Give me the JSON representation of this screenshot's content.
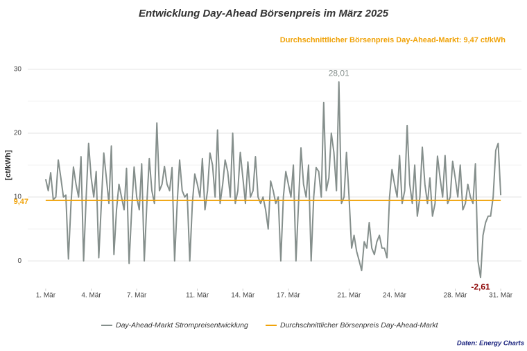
{
  "chart_data": {
    "type": "line",
    "title": "Entwicklung Day-Ahead Börsenpreis im März 2025",
    "subtitle": "Durchschnittlicher Börsenpreis Day-Ahead-Markt: 9,47 ct/kWh",
    "y_label": "[ct/kWh]",
    "source": "Daten: Energy Charts",
    "xlim": [
      0,
      32
    ],
    "ylim": [
      -4,
      34
    ],
    "xticks": [
      {
        "value": 1,
        "label": "1. Mär"
      },
      {
        "value": 4,
        "label": "4. Mär"
      },
      {
        "value": 7,
        "label": "7. Mär"
      },
      {
        "value": 11,
        "label": "11. Mär"
      },
      {
        "value": 14,
        "label": "14. Mär"
      },
      {
        "value": 17,
        "label": "17. Mär"
      },
      {
        "value": 21,
        "label": "21. Mär"
      },
      {
        "value": 24,
        "label": "24. Mär"
      },
      {
        "value": 28,
        "label": "28. Mär"
      },
      {
        "value": 31,
        "label": "31. Mär"
      }
    ],
    "yticks": [
      0,
      10,
      20,
      30
    ],
    "y_minor_grid": [
      5,
      15,
      25
    ],
    "grid": true,
    "series": [
      {
        "name": "Day-Ahead-Markt Strompreisentwicklung",
        "color": "#858f8c",
        "x": [
          1,
          1.17,
          1.33,
          1.5,
          1.67,
          1.83,
          2,
          2.17,
          2.33,
          2.5,
          2.67,
          2.83,
          3,
          3.17,
          3.33,
          3.5,
          3.67,
          3.83,
          4,
          4.17,
          4.33,
          4.5,
          4.67,
          4.83,
          5,
          5.17,
          5.33,
          5.5,
          5.67,
          5.83,
          6,
          6.17,
          6.33,
          6.5,
          6.67,
          6.83,
          7,
          7.17,
          7.33,
          7.5,
          7.67,
          7.83,
          8,
          8.17,
          8.33,
          8.5,
          8.67,
          8.83,
          9,
          9.17,
          9.33,
          9.5,
          9.67,
          9.83,
          10,
          10.17,
          10.33,
          10.5,
          10.67,
          10.83,
          11,
          11.17,
          11.33,
          11.5,
          11.67,
          11.83,
          12,
          12.17,
          12.33,
          12.5,
          12.67,
          12.83,
          13,
          13.17,
          13.33,
          13.5,
          13.67,
          13.83,
          14,
          14.17,
          14.33,
          14.5,
          14.67,
          14.83,
          15,
          15.17,
          15.33,
          15.5,
          15.67,
          15.83,
          16,
          16.17,
          16.33,
          16.5,
          16.67,
          16.83,
          17,
          17.17,
          17.33,
          17.5,
          17.67,
          17.83,
          18,
          18.17,
          18.33,
          18.5,
          18.67,
          18.83,
          19,
          19.17,
          19.33,
          19.5,
          19.67,
          19.83,
          20,
          20.17,
          20.33,
          20.5,
          20.67,
          20.83,
          21,
          21.17,
          21.33,
          21.5,
          21.67,
          21.83,
          22,
          22.17,
          22.33,
          22.5,
          22.67,
          22.83,
          23,
          23.17,
          23.33,
          23.5,
          23.67,
          23.83,
          24,
          24.17,
          24.33,
          24.5,
          24.67,
          24.83,
          25,
          25.17,
          25.33,
          25.5,
          25.67,
          25.83,
          26,
          26.17,
          26.33,
          26.5,
          26.67,
          26.83,
          27,
          27.17,
          27.33,
          27.5,
          27.67,
          27.83,
          28,
          28.17,
          28.33,
          28.5,
          28.67,
          28.83,
          29,
          29.17,
          29.33,
          29.5,
          29.67,
          29.83,
          30,
          30.17,
          30.33,
          30.5,
          30.67,
          30.83,
          31
        ],
        "values": [
          12.8,
          11,
          13.8,
          9.6,
          10,
          15.8,
          13,
          10,
          10.3,
          0.3,
          9,
          14.7,
          12,
          10,
          16.3,
          0,
          10,
          18.4,
          13,
          10,
          14,
          0.5,
          9,
          16.9,
          13,
          9,
          18,
          1,
          8,
          12,
          10,
          8,
          14.5,
          -0.4,
          8,
          14.7,
          10,
          8,
          15.2,
          0,
          9,
          16,
          11,
          9,
          21.6,
          11,
          12,
          14.8,
          12,
          11,
          14.6,
          0,
          9,
          15.8,
          11,
          10,
          10.5,
          0,
          9,
          13.6,
          12,
          10,
          16,
          8,
          11,
          16.9,
          15,
          10,
          20.5,
          9,
          12,
          15.8,
          14,
          10,
          20,
          9,
          11,
          17,
          13,
          9,
          15.5,
          10,
          11,
          16.3,
          10,
          9,
          10,
          8,
          5,
          12.5,
          11,
          9,
          10,
          0,
          10,
          14,
          12,
          10,
          15,
          0,
          9,
          17.7,
          12,
          10,
          15,
          0,
          10,
          14.6,
          14,
          10,
          24.8,
          11,
          13,
          20,
          17,
          11,
          28.01,
          9,
          10,
          17,
          10,
          2,
          4,
          1.5,
          0,
          -1.5,
          3,
          2,
          6,
          2,
          1,
          3,
          4,
          2,
          2,
          0.5,
          10,
          14.3,
          12,
          10,
          16.5,
          9,
          11,
          21.2,
          12,
          9,
          15,
          7,
          10,
          17.8,
          12,
          9,
          13,
          7,
          9,
          16.4,
          13,
          10,
          16.5,
          9,
          10,
          15.6,
          13,
          10,
          15,
          8,
          9,
          12,
          10,
          9,
          15.2,
          0,
          -2.61,
          4,
          6,
          7,
          7,
          10,
          17.3,
          18.4,
          10.3
        ]
      }
    ],
    "mean_line": {
      "name": "Durchschnittlicher Börsenpreis Day-Ahead-Markt",
      "color": "#f0a30a",
      "value": 9.47,
      "label": "9,47",
      "x": [
        1,
        31
      ]
    },
    "peak": {
      "x": 20.33,
      "value": 28.01,
      "label": "28,01",
      "color": "#858f8c"
    },
    "trough": {
      "x": 29.67,
      "value": -2.61,
      "label": "-2,61",
      "color": "#8b0000"
    }
  }
}
